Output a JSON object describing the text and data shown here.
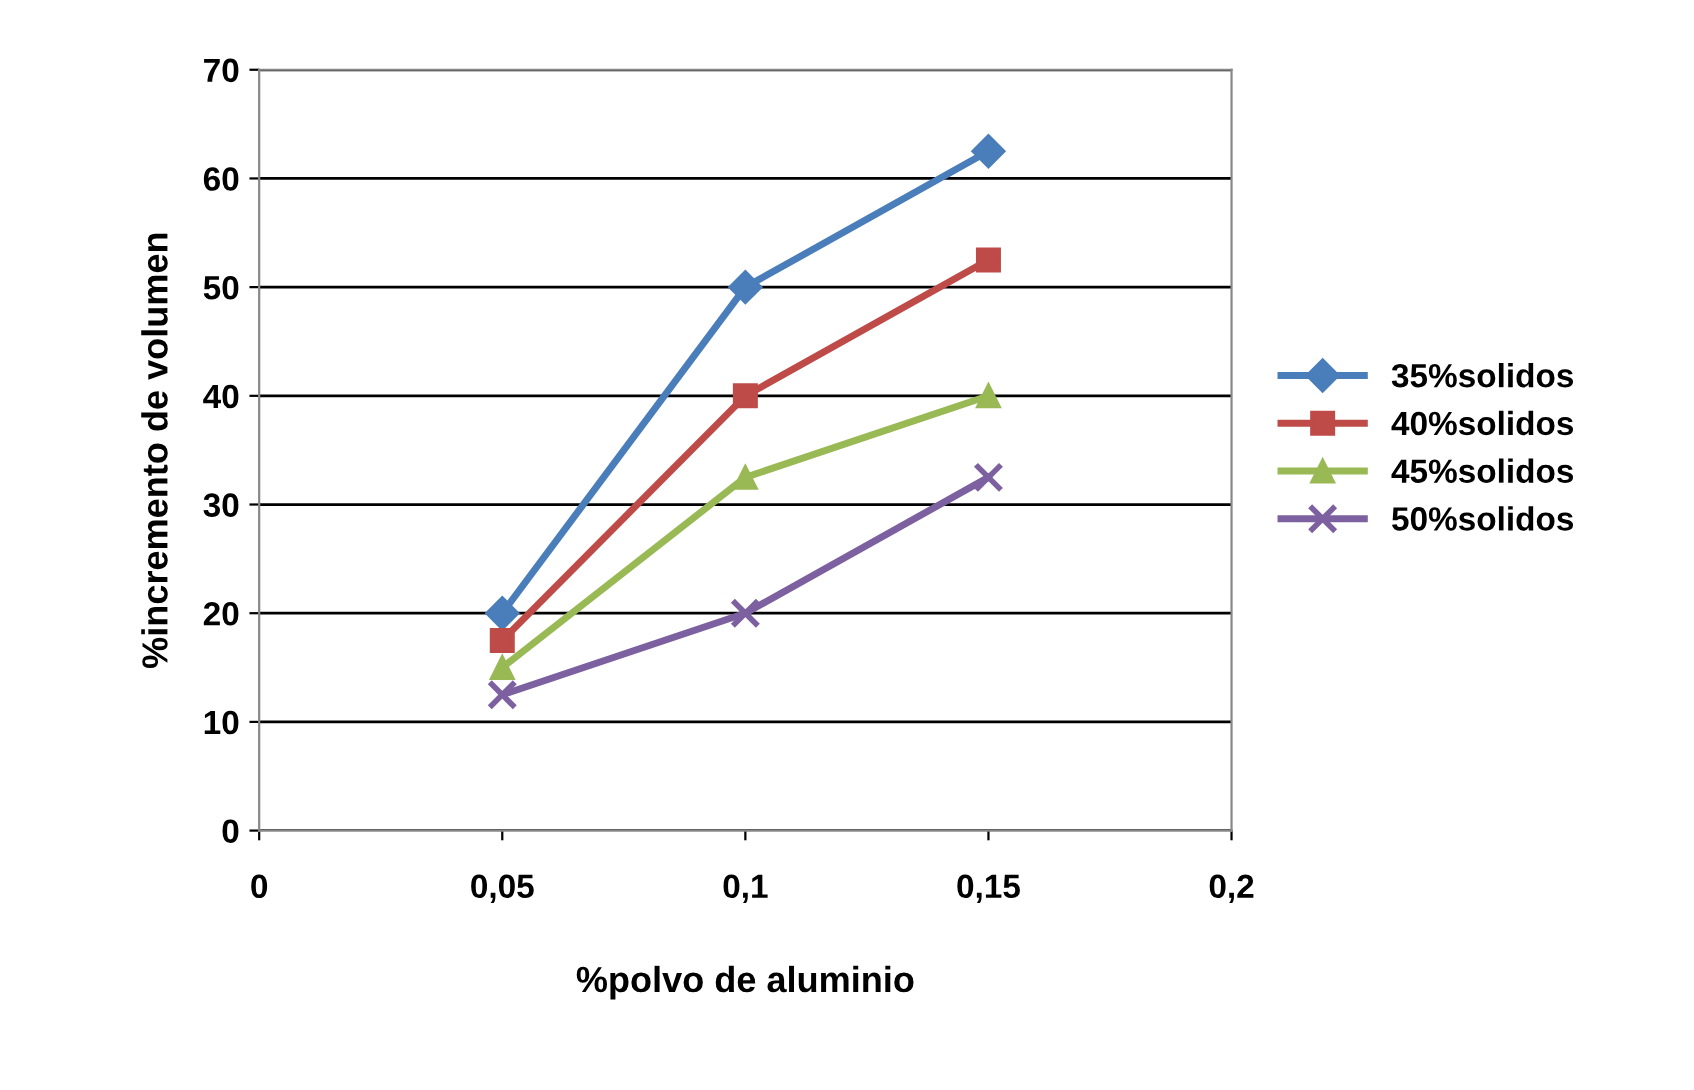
{
  "chart_data": {
    "type": "line",
    "xlabel": "%polvo de aluminio",
    "ylabel": "%incremento de volumen",
    "x": [
      0.05,
      0.1,
      0.15
    ],
    "series": [
      {
        "name": "35%solidos",
        "color": "#4a7ebb",
        "marker": "diamond",
        "values": [
          20,
          50,
          62.5
        ]
      },
      {
        "name": "40%solidos",
        "color": "#be4b48",
        "marker": "square",
        "values": [
          17.5,
          40,
          52.5
        ]
      },
      {
        "name": "45%solidos",
        "color": "#98b954",
        "marker": "triangle",
        "values": [
          15,
          32.5,
          40
        ]
      },
      {
        "name": "50%solidos",
        "color": "#7d60a0",
        "marker": "cross",
        "values": [
          12.5,
          20,
          32.5
        ]
      }
    ],
    "xlim": [
      0,
      0.2
    ],
    "xticks": [
      0,
      {
        "value": 0.05,
        "label": "0,05"
      },
      {
        "value": 0.1,
        "label": "0,1"
      },
      {
        "value": 0.15,
        "label": "0,15"
      },
      {
        "value": 0.2,
        "label": "0,2"
      }
    ],
    "ylim": [
      0,
      70
    ],
    "yticks": [
      0,
      10,
      20,
      30,
      40,
      50,
      60,
      70
    ],
    "grid": "y",
    "legend": "right",
    "line_style": "solid"
  }
}
